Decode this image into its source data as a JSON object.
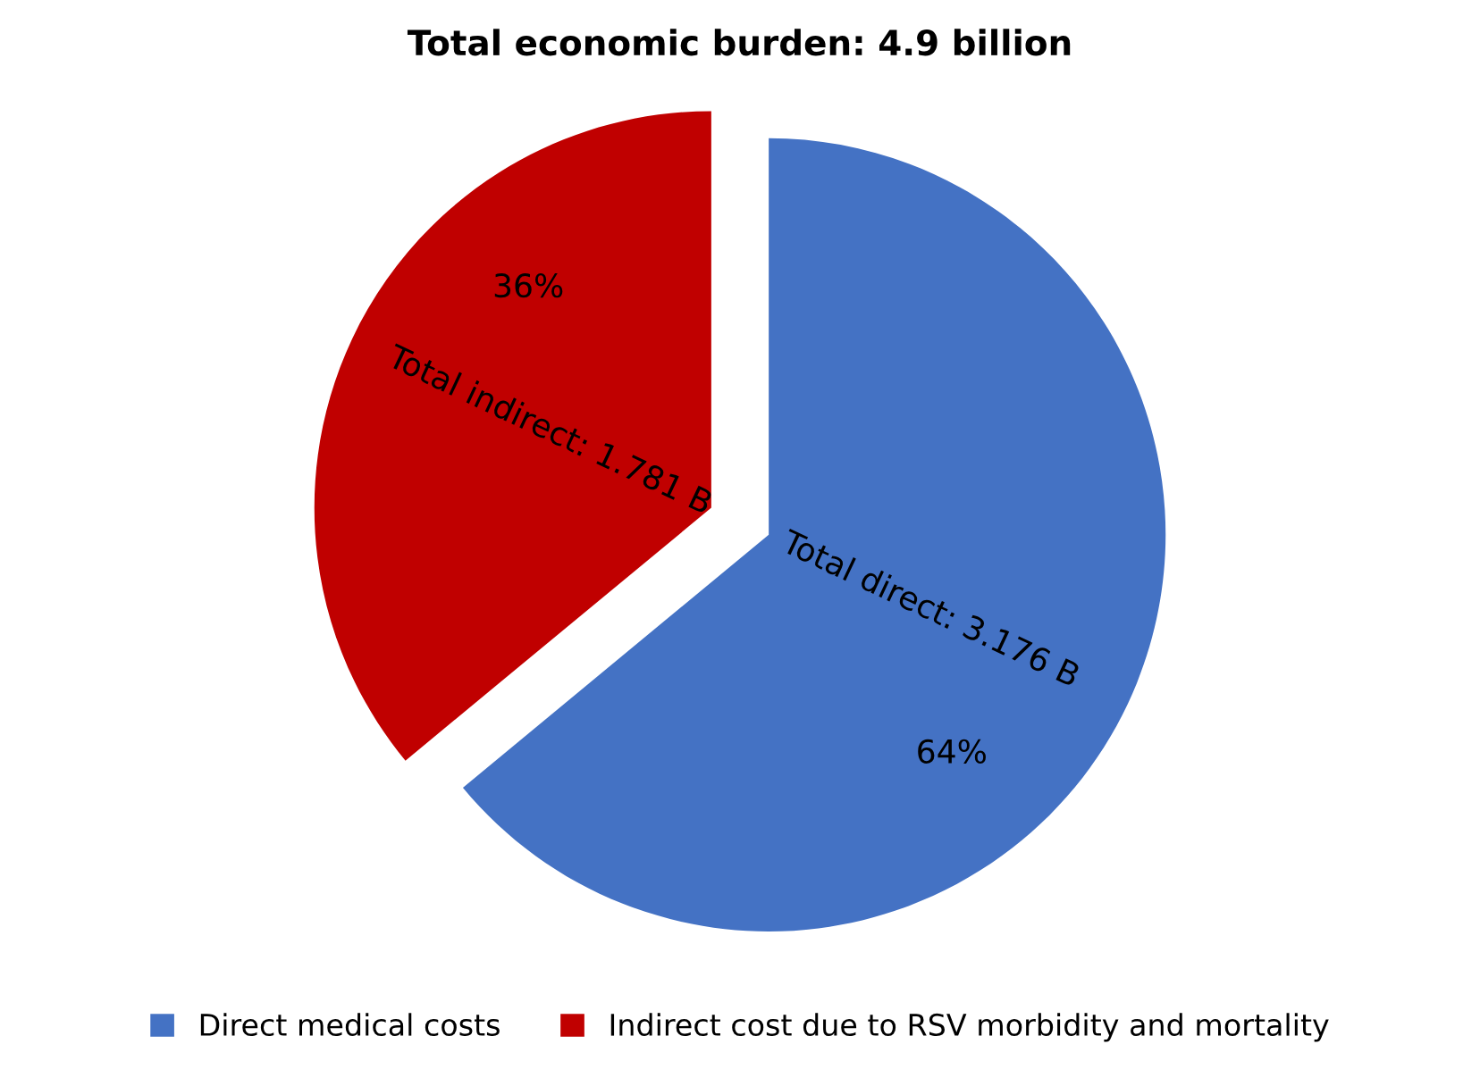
{
  "chart_data": {
    "type": "pie",
    "title": "Total economic burden: 4.9 billion",
    "categories": [
      "Direct medical costs",
      "Indirect cost due to RSV morbidity and mortality"
    ],
    "values": [
      64,
      36
    ],
    "colors": [
      "#4472c4",
      "#c00000"
    ],
    "value_labels": [
      "64%",
      "36%"
    ],
    "annotations": [
      "Total direct: 3.176 B",
      "Total indirect: 1.781 B"
    ],
    "legend": "bottom"
  }
}
